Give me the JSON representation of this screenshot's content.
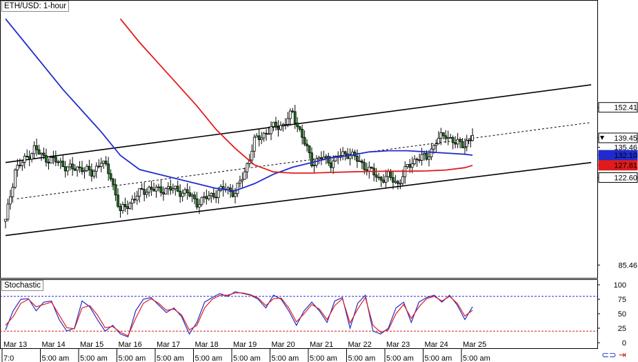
{
  "header": {
    "title": "ETH/USD: 1-hour"
  },
  "indicator": {
    "title": "Stochastic"
  },
  "colors": {
    "ma_fast": "#1f2bcc",
    "ma_slow": "#e01b1b",
    "stoch_k": "#1f2bcc",
    "stoch_d": "#e01b1b",
    "stoch_level": "#2a2ad0",
    "overbought_line": "#2a2ad0",
    "oversold_line": "#d01e1e",
    "candle": "#000000",
    "candle_up": "#ffffff",
    "candle_down": "#1a7a1a",
    "channel": "#000000",
    "price_tag_bg": "#000000",
    "price_tag_fg": "#ffffff"
  },
  "icons": {
    "link": "link-icon",
    "arrow": "arrow-icon"
  },
  "chart_data": [
    {
      "type": "candlestick",
      "title": "ETH/USD: 1-hour",
      "x_labels_top": [
        "Mar 13",
        "Mar 14",
        "Mar 15",
        "Mar 16",
        "Mar 17",
        "Mar 18",
        "Mar 19",
        "Mar 20",
        "Mar 21",
        "Mar 22",
        "Mar 23",
        "Mar 24",
        "Mar 25"
      ],
      "x_labels_bottom": [
        "7:0",
        "5:00 am",
        "5:00 am",
        "5:00 am",
        "5:00 am",
        "5:00 am",
        "5:00 am",
        "5:00 am",
        "5:00 am",
        "5:00 am",
        "5:00 am",
        "5:00 am",
        "5:00 am"
      ],
      "y_axis_labels": [
        "152.41",
        "139.45",
        "135.46",
        "132.10",
        "127.81",
        "122.60",
        "85.46"
      ],
      "price_tags": [
        {
          "value": "152.41",
          "style": "plain"
        },
        {
          "value": "139.45",
          "style": "current"
        },
        {
          "value": "135.46",
          "style": "plain-text"
        },
        {
          "value": "132.10",
          "style": "blue-ma"
        },
        {
          "value": "127.81",
          "style": "red-ma"
        },
        {
          "value": "122.60",
          "style": "plain"
        },
        {
          "value": "85.46",
          "style": "plain-text"
        }
      ],
      "series": [
        {
          "name": "",
          "kind": "ma_fast",
          "x": [
            0,
            0.5,
            1,
            1.5,
            2,
            2.5,
            3,
            3.5,
            4,
            4.5,
            5,
            5.5,
            6,
            6.5,
            7,
            7.5,
            8,
            8.5,
            9,
            9.5,
            10,
            10.5,
            11,
            11.5,
            12,
            12.2
          ],
          "y": [
            190,
            180,
            170,
            160,
            151,
            142,
            132,
            126,
            124,
            122,
            120,
            118,
            117,
            120,
            124,
            127,
            129,
            131,
            132,
            133.5,
            134,
            134,
            133.5,
            133,
            132.5,
            132.1
          ]
        },
        {
          "name": "",
          "kind": "ma_slow",
          "x": [
            3,
            3.5,
            4,
            4.5,
            5,
            5.5,
            6,
            6.5,
            7,
            7.5,
            8,
            8.5,
            9,
            9.5,
            10,
            10.5,
            11,
            11.5,
            12,
            12.2
          ],
          "y": [
            190,
            180,
            171,
            162,
            153,
            143,
            135,
            128,
            125,
            124.5,
            124.5,
            124.8,
            125,
            125.2,
            125.3,
            125.3,
            125.4,
            125.8,
            126.8,
            127.8
          ]
        },
        {
          "name": "",
          "kind": "close",
          "x": [
            0,
            0.25,
            0.5,
            0.75,
            1,
            1.25,
            1.5,
            1.75,
            2,
            2.25,
            2.5,
            2.75,
            3,
            3.25,
            3.5,
            3.75,
            4,
            4.25,
            4.5,
            4.75,
            5,
            5.25,
            5.5,
            5.75,
            6,
            6.25,
            6.5,
            6.75,
            7,
            7.25,
            7.5,
            7.75,
            8,
            8.25,
            8.5,
            8.75,
            9,
            9.25,
            9.5,
            9.75,
            10,
            10.25,
            10.5,
            10.75,
            11,
            11.25,
            11.5,
            11.75,
            12,
            12.2
          ],
          "y": [
            104,
            126,
            130,
            135,
            131,
            130,
            128,
            126,
            127,
            124,
            130,
            123,
            108,
            112,
            116,
            118,
            117,
            118,
            117,
            116,
            112,
            114,
            116,
            118,
            116,
            125,
            138,
            141,
            144,
            145,
            150,
            140,
            129,
            131,
            129,
            132,
            133,
            129,
            126,
            122,
            123,
            120,
            127,
            131,
            131,
            138,
            141,
            137,
            137,
            139.45
          ]
        }
      ],
      "channel": {
        "upper": {
          "x": [
            0,
            15.3
          ],
          "y": [
            129,
            162
          ]
        },
        "middle": {
          "x": [
            0.3,
            15.3
          ],
          "y": [
            113.6,
            146
          ]
        },
        "lower": {
          "x": [
            0,
            15.3
          ],
          "y": [
            98,
            129
          ]
        }
      },
      "ylim": [
        80,
        198
      ],
      "xlim": [
        0,
        15.5
      ],
      "grid": false
    },
    {
      "type": "line",
      "title": "Stochastic",
      "y_axis_labels": [
        "100",
        "75",
        "50",
        "25",
        "0"
      ],
      "levels": [
        80,
        20
      ],
      "series": [
        {
          "name": "",
          "kind": "stoch_k",
          "x": [
            0,
            0.2,
            0.4,
            0.6,
            0.8,
            1,
            1.2,
            1.4,
            1.6,
            1.8,
            2,
            2.2,
            2.4,
            2.6,
            2.8,
            3,
            3.2,
            3.4,
            3.6,
            3.8,
            4,
            4.2,
            4.4,
            4.6,
            4.8,
            5,
            5.2,
            5.4,
            5.6,
            5.8,
            6,
            6.2,
            6.4,
            6.6,
            6.8,
            7,
            7.2,
            7.4,
            7.6,
            7.8,
            8,
            8.2,
            8.4,
            8.6,
            8.8,
            9,
            9.2,
            9.4,
            9.6,
            9.8,
            10,
            10.2,
            10.4,
            10.6,
            10.8,
            11,
            11.2,
            11.4,
            11.6,
            11.8,
            12,
            12.2
          ],
          "y": [
            22,
            55,
            75,
            76,
            55,
            70,
            72,
            40,
            20,
            25,
            72,
            62,
            40,
            20,
            30,
            15,
            10,
            55,
            75,
            78,
            65,
            52,
            60,
            45,
            15,
            35,
            70,
            78,
            85,
            80,
            88,
            85,
            82,
            75,
            60,
            82,
            75,
            55,
            30,
            55,
            70,
            55,
            35,
            72,
            78,
            25,
            68,
            82,
            20,
            15,
            25,
            60,
            70,
            35,
            70,
            78,
            82,
            70,
            82,
            65,
            40,
            62
          ]
        },
        {
          "name": "",
          "kind": "stoch_d",
          "x": [
            0,
            0.2,
            0.4,
            0.6,
            0.8,
            1,
            1.2,
            1.4,
            1.6,
            1.8,
            2,
            2.2,
            2.4,
            2.6,
            2.8,
            3,
            3.2,
            3.4,
            3.6,
            3.8,
            4,
            4.2,
            4.4,
            4.6,
            4.8,
            5,
            5.2,
            5.4,
            5.6,
            5.8,
            6,
            6.2,
            6.4,
            6.6,
            6.8,
            7,
            7.2,
            7.4,
            7.6,
            7.8,
            8,
            8.2,
            8.4,
            8.6,
            8.8,
            9,
            9.2,
            9.4,
            9.6,
            9.8,
            10,
            10.2,
            10.4,
            10.6,
            10.8,
            11,
            11.2,
            11.4,
            11.6,
            11.8,
            12,
            12.2
          ],
          "y": [
            30,
            45,
            68,
            75,
            62,
            66,
            70,
            48,
            26,
            24,
            60,
            64,
            48,
            26,
            28,
            18,
            12,
            42,
            68,
            76,
            68,
            56,
            58,
            48,
            22,
            30,
            60,
            75,
            82,
            82,
            86,
            86,
            83,
            77,
            64,
            76,
            77,
            60,
            36,
            50,
            66,
            58,
            40,
            64,
            76,
            34,
            58,
            78,
            30,
            18,
            22,
            50,
            66,
            42,
            62,
            76,
            80,
            72,
            80,
            68,
            46,
            56
          ]
        }
      ],
      "ylim": [
        0,
        100
      ]
    }
  ]
}
